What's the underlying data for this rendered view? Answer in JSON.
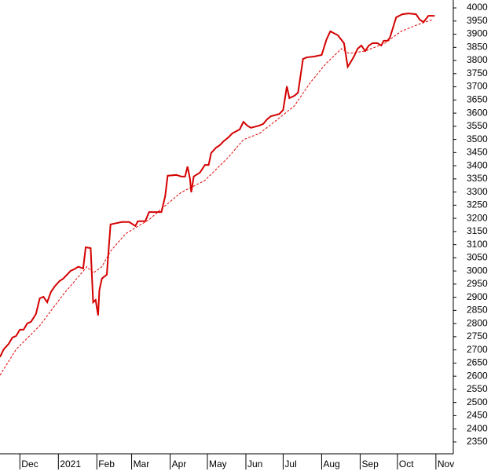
{
  "chart_data": {
    "type": "line",
    "x_unit_note_free": null,
    "xlim": [
      -16,
      349
    ],
    "xticks": [
      {
        "value": 0,
        "label": "Dec"
      },
      {
        "value": 31,
        "label": "2021"
      },
      {
        "value": 62,
        "label": "Feb"
      },
      {
        "value": 90,
        "label": "Mar"
      },
      {
        "value": 121,
        "label": "Apr"
      },
      {
        "value": 151,
        "label": "May"
      },
      {
        "value": 182,
        "label": "Jun"
      },
      {
        "value": 212,
        "label": "Jul"
      },
      {
        "value": 243,
        "label": "Aug"
      },
      {
        "value": 274,
        "label": "Sep"
      },
      {
        "value": 304,
        "label": "Oct"
      },
      {
        "value": 335,
        "label": "Nov"
      }
    ],
    "ylim": [
      2305,
      4030
    ],
    "yticks": [
      2350,
      2400,
      2450,
      2500,
      2550,
      2600,
      2650,
      2700,
      2750,
      2800,
      2850,
      2900,
      2950,
      3000,
      3050,
      3100,
      3150,
      3200,
      3250,
      3300,
      3350,
      3400,
      3450,
      3500,
      3550,
      3600,
      3650,
      3700,
      3750,
      3800,
      3850,
      3900,
      3950,
      4000
    ],
    "series": [
      {
        "color": "#d40000",
        "style": "solid",
        "x": [
          -16,
          -13,
          -9,
          -6,
          -3,
          0,
          3,
          6,
          9,
          13,
          16,
          19,
          22,
          25,
          28,
          32,
          35,
          38,
          41,
          44,
          47,
          51,
          53,
          57,
          59,
          61,
          63,
          64,
          66,
          70,
          73,
          76,
          82,
          88,
          93,
          95,
          101,
          104,
          114,
          117,
          119,
          126,
          130,
          133,
          135,
          137,
          138,
          140,
          145,
          149,
          152,
          154,
          158,
          161,
          164,
          168,
          171,
          177,
          180,
          183,
          186,
          193,
          196,
          199,
          202,
          209,
          212,
          215,
          217,
          221,
          224,
          228,
          231,
          237,
          243,
          247,
          250,
          256,
          261,
          264,
          266,
          269,
          272,
          275,
          278,
          281,
          284,
          288,
          291,
          293,
          296,
          298,
          303,
          308,
          313,
          319,
          322,
          325,
          329,
          334
        ],
        "values": [
          2673,
          2702,
          2723,
          2747,
          2753,
          2777,
          2777,
          2801,
          2807,
          2837,
          2896,
          2902,
          2881,
          2920,
          2941,
          2962,
          2971,
          2986,
          3001,
          3007,
          3016,
          3010,
          3090,
          3087,
          2881,
          2890,
          2831,
          2926,
          2971,
          2986,
          3177,
          3180,
          3186,
          3186,
          3171,
          3189,
          3189,
          3224,
          3224,
          3284,
          3362,
          3365,
          3359,
          3359,
          3397,
          3350,
          3299,
          3359,
          3374,
          3403,
          3403,
          3448,
          3469,
          3478,
          3493,
          3508,
          3523,
          3538,
          3567,
          3553,
          3544,
          3553,
          3559,
          3576,
          3588,
          3597,
          3612,
          3702,
          3657,
          3666,
          3678,
          3806,
          3812,
          3815,
          3821,
          3881,
          3911,
          3896,
          3866,
          3776,
          3791,
          3815,
          3845,
          3857,
          3836,
          3857,
          3866,
          3866,
          3857,
          3875,
          3875,
          3887,
          3964,
          3976,
          3979,
          3976,
          3955,
          3946,
          3970,
          3970
        ]
      },
      {
        "color": "#e00000",
        "style": "dashed",
        "x": [
          -16,
          -3,
          16,
          35,
          54,
          59,
          66,
          73,
          85,
          104,
          117,
          130,
          149,
          168,
          180,
          193,
          209,
          221,
          234,
          247,
          259,
          265,
          278,
          294,
          307,
          319,
          332
        ],
        "values": [
          2604,
          2702,
          2792,
          2911,
          3016,
          2992,
          3016,
          3075,
          3141,
          3195,
          3248,
          3299,
          3344,
          3433,
          3499,
          3523,
          3582,
          3627,
          3717,
          3791,
          3845,
          3827,
          3836,
          3866,
          3911,
          3934,
          3955
        ]
      }
    ]
  }
}
